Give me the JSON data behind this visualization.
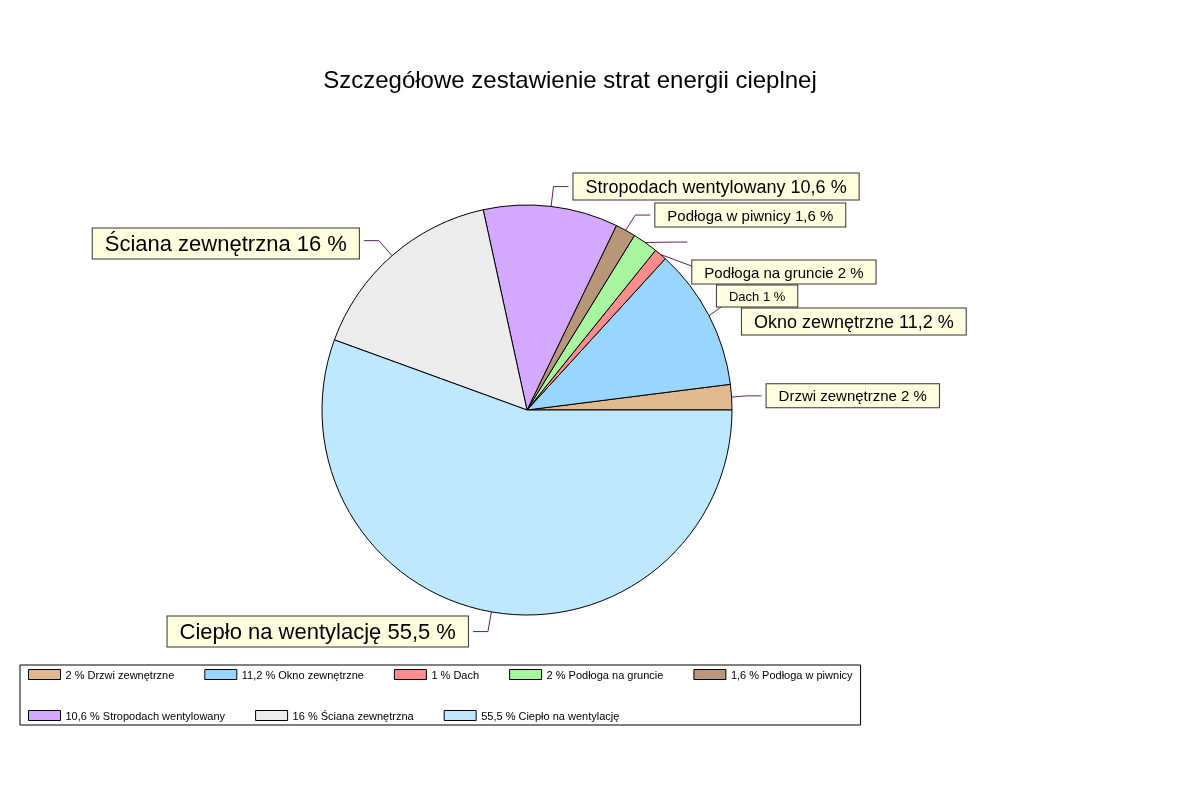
{
  "chart_data": {
    "type": "pie",
    "title": "Szczegółowe zestawienie strat energii cieplnej",
    "categories": [
      "Drzwi zewnętrzne",
      "Okno zewnętrzne",
      "Dach",
      "Podłoga na gruncie",
      "Podłoga w piwnicy",
      "Stropodach wentylowany",
      "Ściana zewnętrzna",
      "Ciepło na wentylację"
    ],
    "values": [
      2,
      11.2,
      1,
      2,
      1.6,
      10.6,
      16,
      55.5
    ],
    "value_labels": [
      "2 %",
      "11,2 %",
      "1 %",
      "2 %",
      "1,6 %",
      "10,6 %",
      "16 %",
      "55,5 %"
    ],
    "colors": [
      "#e0b98f",
      "#99d6ff",
      "#ff8c8c",
      "#a8f5a0",
      "#b8967a",
      "#d4a8ff",
      "#ececec",
      "#bde8ff"
    ],
    "legend": "bottom"
  }
}
